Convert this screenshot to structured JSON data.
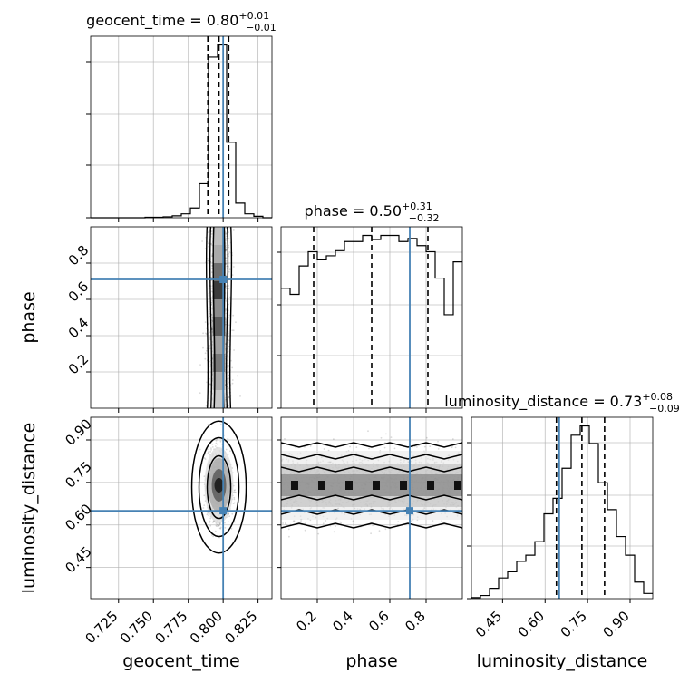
{
  "chart_data": {
    "type": "corner",
    "parameters": [
      "geocent_time",
      "phase",
      "luminosity_distance"
    ],
    "truths": {
      "geocent_time": 0.8,
      "phase": 0.71,
      "luminosity_distance": 0.65
    },
    "truth_color": "#4682b4",
    "ranges": {
      "geocent_time": [
        0.705,
        0.835
      ],
      "phase": [
        0.0,
        1.0
      ],
      "luminosity_distance": [
        0.34,
        0.98
      ]
    },
    "ticks": {
      "geocent_time": {
        "values": [
          0.725,
          0.75,
          0.775,
          0.8,
          0.825
        ],
        "labels": [
          "0.725",
          "0.750",
          "0.775",
          "0.800",
          "0.825"
        ]
      },
      "phase": {
        "values": [
          0.2,
          0.4,
          0.6,
          0.8
        ],
        "labels": [
          "0.2",
          "0.4",
          "0.6",
          "0.8"
        ]
      },
      "luminosity_distance": {
        "values": [
          0.45,
          0.6,
          0.75,
          0.9
        ],
        "labels": [
          "0.45",
          "0.60",
          "0.75",
          "0.90"
        ]
      }
    },
    "marginals": [
      {
        "param": "geocent_time",
        "title_main": "geocent_time = 0.80",
        "title_sup": "+0.01",
        "title_sub": "−0.01",
        "quantiles": [
          0.789,
          0.797,
          0.804
        ],
        "hist_edges": [
          0.705,
          0.7115,
          0.718,
          0.7245,
          0.731,
          0.7375,
          0.744,
          0.7505,
          0.757,
          0.7635,
          0.77,
          0.7765,
          0.783,
          0.7895,
          0.796,
          0.8025,
          0.809,
          0.8155,
          0.822,
          0.8285,
          0.835
        ],
        "hist_counts": [
          0,
          0,
          0,
          0,
          0,
          0,
          1,
          1,
          2,
          4,
          8,
          20,
          70,
          330,
          355,
          155,
          30,
          8,
          3,
          0
        ]
      },
      {
        "param": "phase",
        "title_main": "phase = 0.50",
        "title_sup": "+0.31",
        "title_sub": "−0.32",
        "quantiles": [
          0.18,
          0.5,
          0.81
        ],
        "hist_edges": [
          0.0,
          0.05,
          0.1,
          0.15,
          0.2,
          0.25,
          0.3,
          0.35,
          0.4,
          0.45,
          0.5,
          0.55,
          0.6,
          0.65,
          0.7,
          0.75,
          0.8,
          0.85,
          0.9,
          0.95,
          1.0
        ],
        "hist_counts": [
          118,
          112,
          140,
          154,
          146,
          150,
          155,
          164,
          164,
          170,
          166,
          170,
          170,
          164,
          167,
          160,
          154,
          128,
          92,
          144
        ]
      },
      {
        "param": "luminosity_distance",
        "title_main": "luminosity_distance = 0.73",
        "title_sup": "+0.08",
        "title_sub": "−0.09",
        "quantiles": [
          0.64,
          0.73,
          0.81
        ],
        "hist_edges": [
          0.34,
          0.372,
          0.404,
          0.436,
          0.468,
          0.5,
          0.532,
          0.564,
          0.596,
          0.628,
          0.66,
          0.692,
          0.724,
          0.756,
          0.788,
          0.82,
          0.852,
          0.884,
          0.916,
          0.948,
          0.98
        ],
        "hist_counts": [
          1,
          3,
          10,
          20,
          26,
          36,
          42,
          55,
          82,
          97,
          126,
          158,
          167,
          150,
          112,
          86,
          60,
          42,
          16,
          5
        ]
      }
    ],
    "joint_panels": [
      {
        "x": "geocent_time",
        "y": "phase",
        "x_sigma": 0.004,
        "y_range": [
          0.0,
          1.0
        ]
      },
      {
        "x": "geocent_time",
        "y": "luminosity_distance",
        "x_sigma": 0.004,
        "y_mean": 0.74,
        "y_sigma": 0.06
      },
      {
        "x": "phase",
        "y": "luminosity_distance",
        "x_range": [
          0.0,
          1.0
        ],
        "y_mean": 0.74,
        "y_sigma": 0.06
      }
    ],
    "grid": true,
    "legend": "none"
  }
}
